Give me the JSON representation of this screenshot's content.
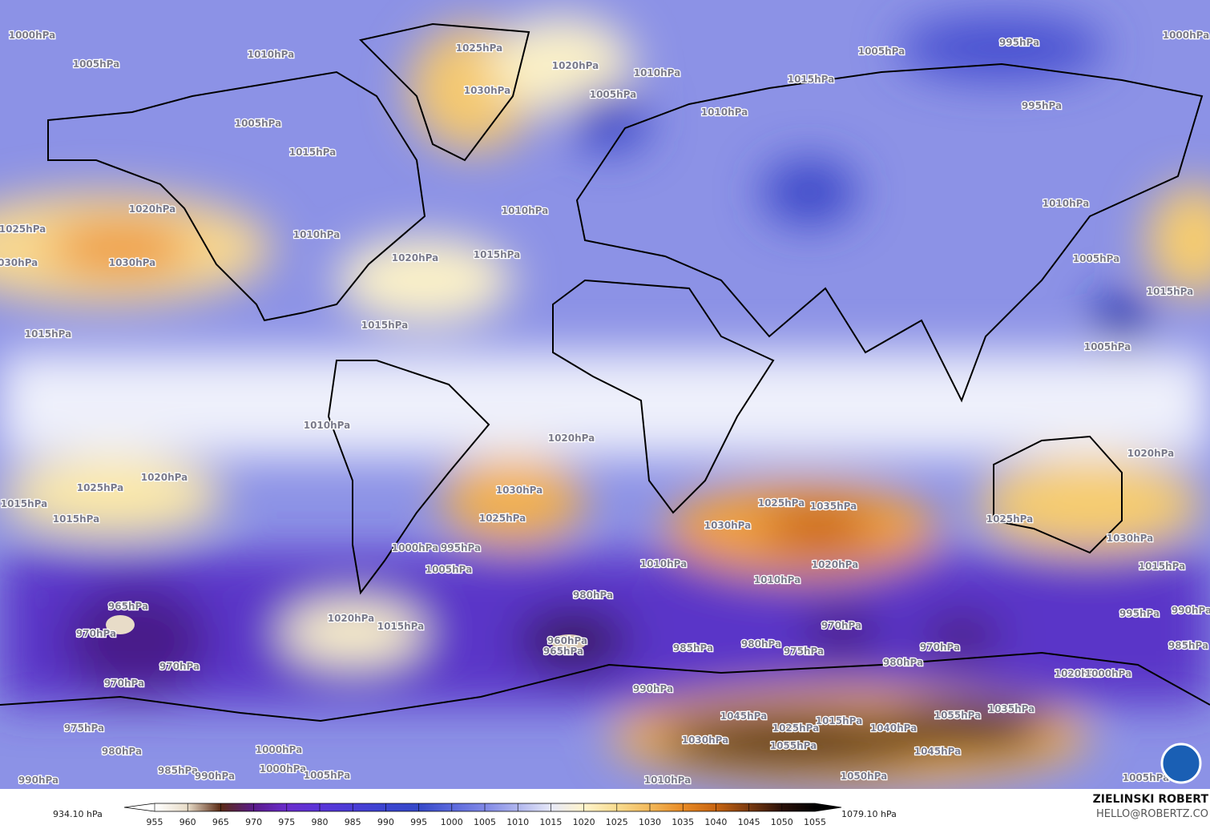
{
  "labels": [
    "1000hPa",
    "1010hPa",
    "1025hPa",
    "1030hPa",
    "1020hPa",
    "1005hPa",
    "1005hPa",
    "995hPa",
    "1000hPa",
    "1010hPa",
    "1005hPa",
    "1015hPa",
    "995hPa",
    "1010hPa",
    "1005hPa",
    "1015hPa",
    "1020hPa",
    "1025hPa",
    "1030hPa",
    "1030hPa",
    "1010hPa",
    "1020hPa",
    "1015hPa",
    "1010hPa",
    "1015hPa",
    "1015hPa",
    "1005hPa",
    "1015hPa",
    "1005hPa",
    "1010hPa",
    "1020hPa",
    "1010hPa",
    "1020hPa",
    "1025hPa",
    "1020hPa",
    "1015hPa",
    "1015hPa",
    "1030hPa",
    "1025hPa",
    "1035hPa",
    "1030hPa",
    "1025hPa",
    "1025hPa",
    "1030hPa",
    "1015hPa",
    "1000hPa",
    "995hPa",
    "1005hPa",
    "1010hPa",
    "1020hPa",
    "1010hPa",
    "980hPa",
    "965hPa",
    "970hPa",
    "960hPa",
    "965hPa",
    "970hPa",
    "970hPa",
    "1020hPa",
    "1015hPa",
    "985hPa",
    "980hPa",
    "975hPa",
    "970hPa",
    "970hPa",
    "980hPa",
    "995hPa",
    "985hPa",
    "990hPa",
    "1020hPa",
    "1000hPa",
    "1045hPa",
    "1025hPa",
    "1015hPa",
    "1040hPa",
    "1055hPa",
    "1035hPa",
    "1030hPa",
    "1055hPa",
    "1045hPa",
    "1050hPa",
    "975hPa",
    "980hPa",
    "1000hPa",
    "985hPa",
    "990hPa",
    "1000hPa",
    "1005hPa",
    "990hPa",
    "1010hPa",
    "1005hPa",
    "990hPa"
  ],
  "colorbar": {
    "min_label": "934.10 hPa",
    "max_label": "1079.10 hPa",
    "ticks": [
      955,
      960,
      965,
      970,
      975,
      980,
      985,
      990,
      995,
      1000,
      1005,
      1010,
      1015,
      1020,
      1025,
      1030,
      1035,
      1040,
      1045,
      1050,
      1055
    ],
    "colors": [
      "#ffffff",
      "#e8dcc8",
      "#5a2a14",
      "#5a1a8a",
      "#6a2ccc",
      "#5a34d8",
      "#4a3cd6",
      "#3a44d0",
      "#3548c8",
      "#5a68dc",
      "#8088e6",
      "#b0b6ee",
      "#e6e8f8",
      "#fff4cc",
      "#f8dc90",
      "#f2b85a",
      "#e88a24",
      "#c86410",
      "#7a3a10",
      "#2a1008",
      "#000000"
    ]
  },
  "credit": {
    "name": "ZIELINSKI ROBERT",
    "email": "HELLO@ROBERTZ.CO"
  }
}
